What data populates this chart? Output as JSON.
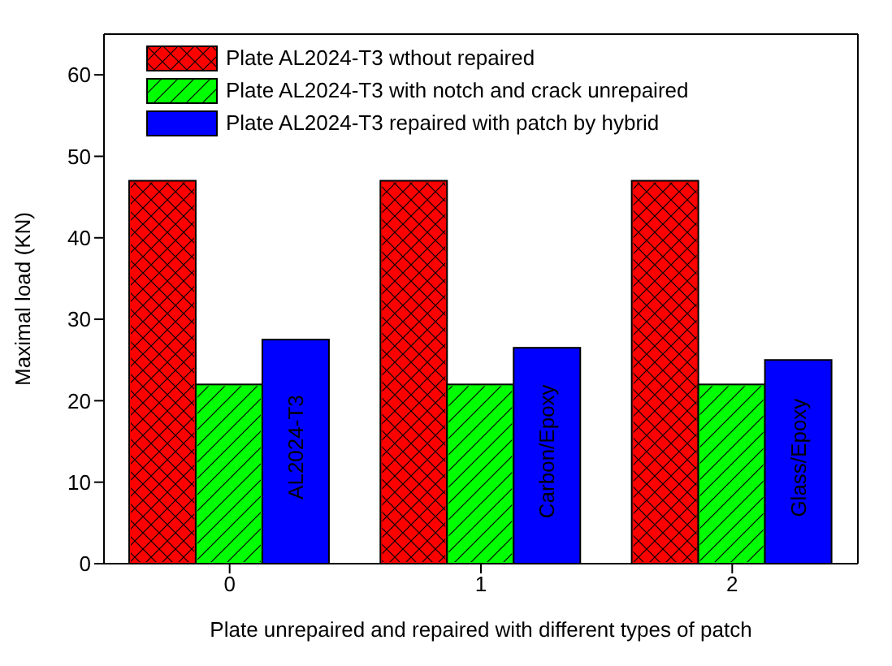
{
  "chart_data": {
    "type": "bar",
    "xlabel": "Plate unrepaired and repaired with different types of patch",
    "ylabel": "Maximal load (KN)",
    "categories": [
      "0",
      "1",
      "2"
    ],
    "series": [
      {
        "name": "Plate AL2024-T3 wthout repaired",
        "color": "#ff0000",
        "values": [
          47,
          47,
          47
        ]
      },
      {
        "name": "Plate AL2024-T3 with notch and crack unrepaired",
        "color": "#00ff00",
        "values": [
          22,
          22,
          22
        ]
      },
      {
        "name": "Plate AL2024-T3 repaired with patch by hybrid",
        "color": "#0000ff",
        "values": [
          27.5,
          26.5,
          25
        ]
      }
    ],
    "ylim": [
      0,
      65
    ],
    "yticks": [
      0,
      10,
      20,
      30,
      40,
      50,
      60
    ],
    "legend": "top left",
    "annotations": [
      "AL2024-T3",
      "Carbon/Epoxy",
      "Glass/Epoxy"
    ]
  }
}
